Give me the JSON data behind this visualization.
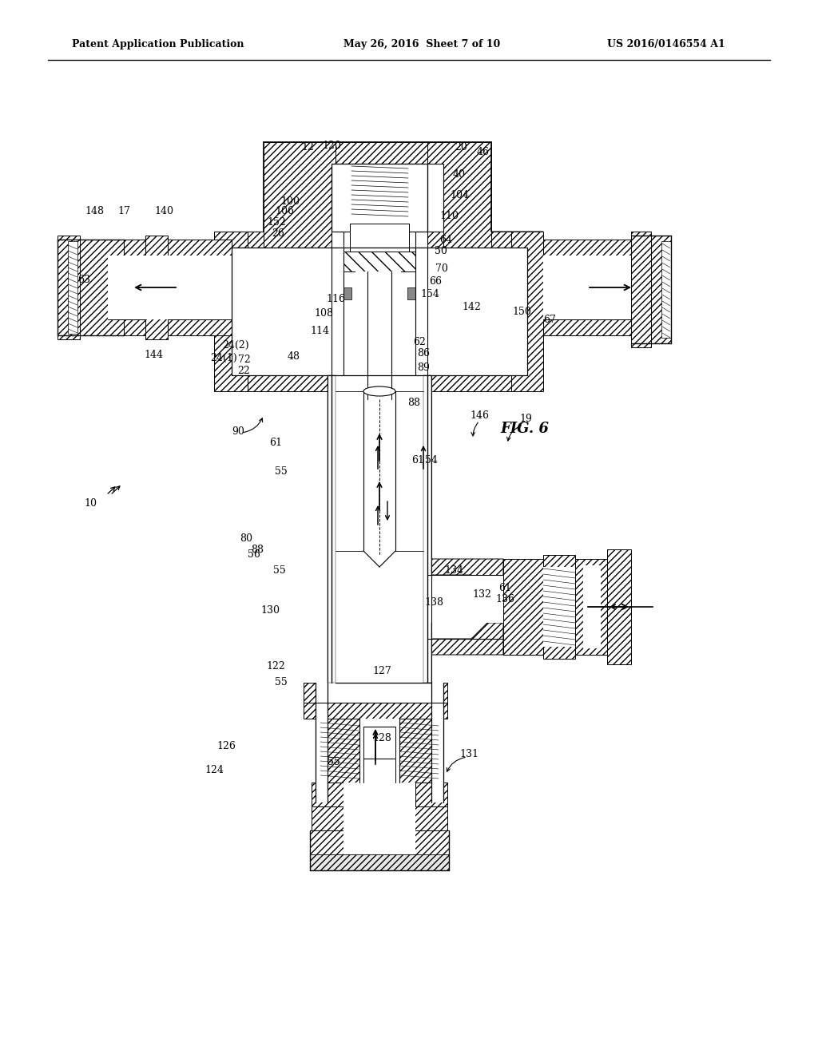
{
  "bg_color": "#ffffff",
  "lc": "#000000",
  "header_left": "Patent Application Publication",
  "header_center": "May 26, 2016  Sheet 7 of 10",
  "header_right": "US 2016/0146554 A1",
  "fig_label": "FIG. 6"
}
